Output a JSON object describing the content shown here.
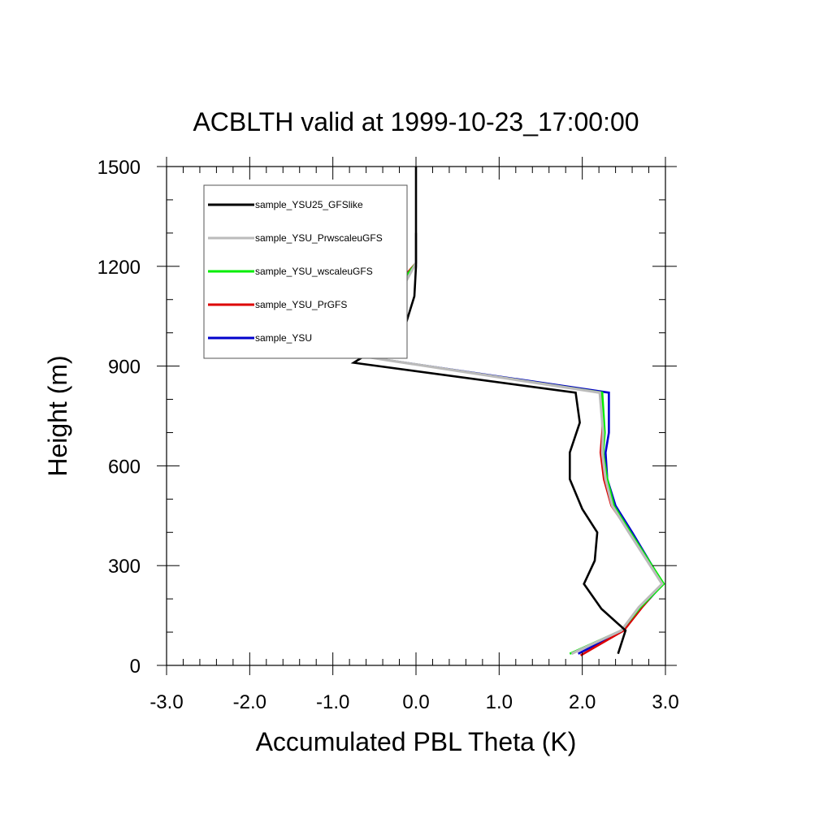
{
  "chart_data": {
    "type": "line",
    "title": "ACBLTH valid at 1999-10-23_17:00:00",
    "xlabel": "Accumulated PBL Theta (K)",
    "ylabel": "Height (m)",
    "xlim": [
      -3.0,
      3.0
    ],
    "ylim": [
      0,
      1500
    ],
    "xticks": [
      -3.0,
      -2.0,
      -1.0,
      0.0,
      1.0,
      2.0,
      3.0
    ],
    "xtick_labels": [
      "-3.0",
      "-2.0",
      "-1.0",
      "0.0",
      "1.0",
      "2.0",
      "3.0"
    ],
    "yticks": [
      0,
      300,
      600,
      900,
      1200,
      1500
    ],
    "ytick_labels": [
      "0",
      "300",
      "600",
      "900",
      "1200",
      "1500"
    ],
    "grid": false,
    "legend_position": "top-left",
    "series": [
      {
        "name": "sample_YSU",
        "color": "#0000cc",
        "points": [
          [
            1.95,
            35
          ],
          [
            2.5,
            105
          ],
          [
            2.7,
            170
          ],
          [
            2.97,
            245
          ],
          [
            2.6,
            400
          ],
          [
            2.4,
            480
          ],
          [
            2.3,
            560
          ],
          [
            2.28,
            640
          ],
          [
            2.32,
            700
          ],
          [
            2.32,
            820
          ],
          [
            -0.4,
            920
          ],
          [
            -2.45,
            1005
          ],
          [
            -0.3,
            1110
          ],
          [
            0.0,
            1210
          ],
          [
            0.0,
            1300
          ]
        ]
      },
      {
        "name": "sample_YSU_PrGFS",
        "color": "#dd0000",
        "points": [
          [
            1.98,
            30
          ],
          [
            2.5,
            105
          ],
          [
            2.72,
            175
          ],
          [
            2.96,
            245
          ],
          [
            2.57,
            400
          ],
          [
            2.35,
            480
          ],
          [
            2.26,
            560
          ],
          [
            2.22,
            640
          ],
          [
            2.24,
            700
          ],
          [
            2.24,
            820
          ],
          [
            -0.4,
            920
          ],
          [
            -2.45,
            1005
          ],
          [
            -0.35,
            1110
          ],
          [
            0.0,
            1210
          ],
          [
            0.0,
            1300
          ]
        ]
      },
      {
        "name": "sample_YSU_wscaleuGFS",
        "color": "#00ee00",
        "points": [
          [
            1.85,
            35
          ],
          [
            2.47,
            105
          ],
          [
            2.7,
            175
          ],
          [
            2.98,
            245
          ],
          [
            2.58,
            400
          ],
          [
            2.38,
            480
          ],
          [
            2.3,
            560
          ],
          [
            2.25,
            640
          ],
          [
            2.27,
            700
          ],
          [
            2.24,
            820
          ],
          [
            -0.4,
            920
          ],
          [
            -2.45,
            1005
          ],
          [
            -0.3,
            1110
          ],
          [
            0.0,
            1210
          ],
          [
            0.0,
            1300
          ]
        ]
      },
      {
        "name": "sample_YSU_PrwscaleuGFS",
        "color": "#bbbbbb",
        "points": [
          [
            1.87,
            35
          ],
          [
            2.47,
            105
          ],
          [
            2.68,
            175
          ],
          [
            2.96,
            245
          ],
          [
            2.56,
            400
          ],
          [
            2.36,
            480
          ],
          [
            2.28,
            560
          ],
          [
            2.24,
            640
          ],
          [
            2.25,
            700
          ],
          [
            2.21,
            820
          ],
          [
            -0.4,
            920
          ],
          [
            -2.45,
            1005
          ],
          [
            -0.22,
            1110
          ],
          [
            0.0,
            1210
          ],
          [
            0.0,
            1300
          ]
        ]
      },
      {
        "name": "sample_YSU25_GFSlike",
        "color": "#000000",
        "points": [
          [
            2.43,
            35
          ],
          [
            2.52,
            105
          ],
          [
            2.23,
            170
          ],
          [
            2.02,
            245
          ],
          [
            2.15,
            315
          ],
          [
            2.18,
            400
          ],
          [
            2.0,
            470
          ],
          [
            1.85,
            560
          ],
          [
            1.85,
            640
          ],
          [
            1.97,
            730
          ],
          [
            1.92,
            820
          ],
          [
            -0.75,
            910
          ],
          [
            -0.15,
            1005
          ],
          [
            -0.02,
            1110
          ],
          [
            0.0,
            1200
          ],
          [
            0.0,
            1500
          ]
        ]
      }
    ],
    "legend_order": [
      "sample_YSU25_GFSlike",
      "sample_YSU_PrwscaleuGFS",
      "sample_YSU_wscaleuGFS",
      "sample_YSU_PrGFS",
      "sample_YSU"
    ]
  }
}
